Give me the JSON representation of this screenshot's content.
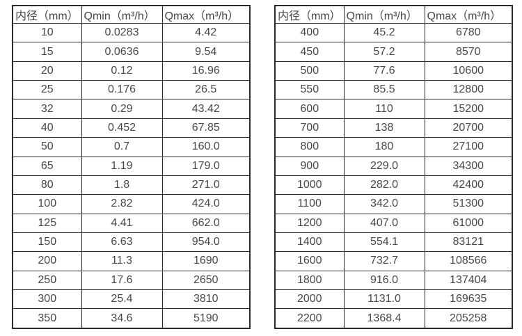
{
  "colors": {
    "background": "#ffffff",
    "border": "#2b2b2b",
    "text": "#474747"
  },
  "tables": [
    {
      "name": "flow-table-small-diameters",
      "headers": [
        "内径（mm）",
        "Qmin（m³/h）",
        "Qmax（m³/h）"
      ],
      "rows": [
        [
          "10",
          "0.0283",
          "4.42"
        ],
        [
          "15",
          "0.0636",
          "9.54"
        ],
        [
          "20",
          "0.12",
          "16.96"
        ],
        [
          "25",
          "0.176",
          "26.5"
        ],
        [
          "32",
          "0.29",
          "43.42"
        ],
        [
          "40",
          "0.452",
          "67.85"
        ],
        [
          "50",
          "0.7",
          "160.0"
        ],
        [
          "65",
          "1.19",
          "179.0"
        ],
        [
          "80",
          "1.8",
          "271.0"
        ],
        [
          "100",
          "2.82",
          "424.0"
        ],
        [
          "125",
          "4.41",
          "662.0"
        ],
        [
          "150",
          "6.63",
          "954.0"
        ],
        [
          "200",
          "11.3",
          "1690"
        ],
        [
          "250",
          "17.6",
          "2650"
        ],
        [
          "300",
          "25.4",
          "3810"
        ],
        [
          "350",
          "34.6",
          "5190"
        ]
      ]
    },
    {
      "name": "flow-table-large-diameters",
      "headers": [
        "内径（mm）",
        "Qmin（m³/h）",
        "Qmax（m³/h）"
      ],
      "rows": [
        [
          "400",
          "45.2",
          "6780"
        ],
        [
          "450",
          "57.2",
          "8570"
        ],
        [
          "500",
          "77.6",
          "10600"
        ],
        [
          "550",
          "85.5",
          "12800"
        ],
        [
          "600",
          "110",
          "15200"
        ],
        [
          "700",
          "138",
          "20700"
        ],
        [
          "800",
          "180",
          "27100"
        ],
        [
          "900",
          "229.0",
          "34300"
        ],
        [
          "1000",
          "282.0",
          "42400"
        ],
        [
          "1100",
          "342.0",
          "51300"
        ],
        [
          "1200",
          "407.0",
          "61000"
        ],
        [
          "1400",
          "554.1",
          "83121"
        ],
        [
          "1600",
          "732.7",
          "108566"
        ],
        [
          "1800",
          "916.0",
          "137404"
        ],
        [
          "2000",
          "1131.0",
          "169635"
        ],
        [
          "2200",
          "1368.4",
          "205258"
        ]
      ]
    }
  ]
}
